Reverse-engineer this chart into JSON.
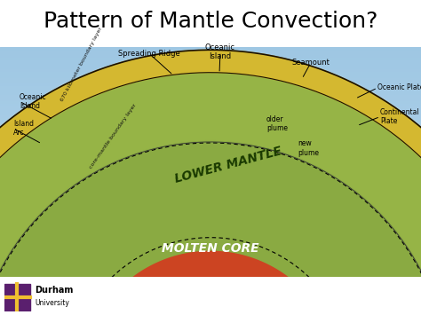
{
  "title": "Pattern of Mantle Convection?",
  "title_fontsize": 18,
  "title_color": "#000000",
  "title_font": "sans-serif",
  "bg_color": "#ffffff",
  "core_color": "#cc4422",
  "yellow_color": "#d4b830",
  "mantle_color": "#8aaa42",
  "lower_mantle_label": "LOWER MANTLE",
  "core_label": "MOLTEN CORE",
  "label_670": "670 kilometer boundary layer",
  "label_core_mantle": "core-mantle boundary layer",
  "logo_text_durham": "Durham",
  "logo_text_univ": "University",
  "logo_color": "#5a1f6e"
}
